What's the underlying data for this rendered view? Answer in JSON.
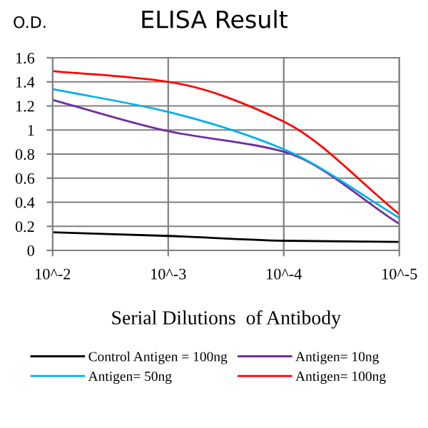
{
  "chart_data": {
    "type": "line",
    "title": "ELISA Result",
    "ylabel": "O.D.",
    "xlabel": "Serial Dilutions  of Antibody",
    "categories": [
      "10^-2",
      "10^-3",
      "10^-4",
      "10^-5"
    ],
    "series": [
      {
        "name": "Control Antigen = 100ng",
        "color": "#000000",
        "values": [
          0.15,
          0.12,
          0.08,
          0.07
        ]
      },
      {
        "name": "Antigen= 10ng",
        "color": "#7030a0",
        "values": [
          1.25,
          0.99,
          0.82,
          0.22
        ]
      },
      {
        "name": "Antigen= 50ng",
        "color": "#00b0f0",
        "values": [
          1.34,
          1.15,
          0.84,
          0.27
        ]
      },
      {
        "name": "Antigen= 100ng",
        "color": "#ff0000",
        "values": [
          1.49,
          1.4,
          1.07,
          0.3
        ]
      }
    ],
    "ylim": [
      0,
      1.6
    ],
    "yticks": [
      0,
      0.2,
      0.4,
      0.6,
      0.8,
      1,
      1.2,
      1.4,
      1.6
    ],
    "grid": true,
    "legend": "bottom",
    "marker": "none",
    "line_style": "solid"
  }
}
